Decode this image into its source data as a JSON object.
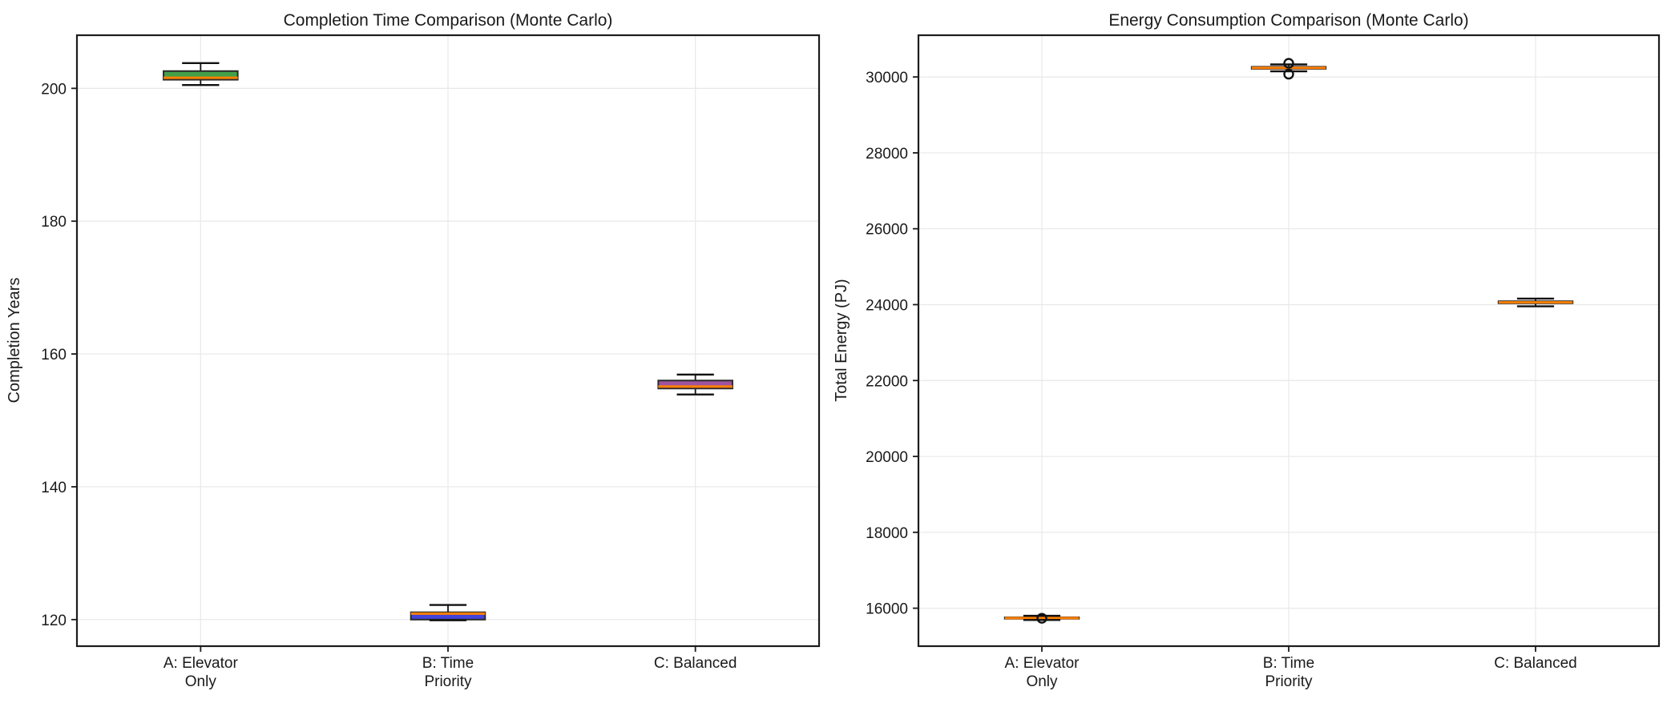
{
  "figure": {
    "background": "#ffffff",
    "text_color": "#1a1a1a",
    "grid_color": "#e8e8e8",
    "spine_color": "#1c1c1c",
    "whisker_color": "#111111",
    "box_edge_color": "#2b2b2b",
    "median_color": "#ff8000"
  },
  "chart_data": [
    {
      "type": "box",
      "title": "Completion Time Comparison (Monte Carlo)",
      "ylabel": "Completion Years",
      "xlabel": "",
      "grid": true,
      "categories": [
        "A: Elevator\nOnly",
        "B: Time\nPriority",
        "C: Balanced"
      ],
      "ylim": [
        116,
        208
      ],
      "yticks": [
        120,
        140,
        160,
        180,
        200
      ],
      "series": [
        {
          "category": "A: Elevator Only",
          "fill": "#43a047",
          "median_color": "#ff8000",
          "whisker_low": 200.5,
          "q1": 201.3,
          "median": 201.6,
          "q3": 202.6,
          "whisker_high": 203.8,
          "outliers": []
        },
        {
          "category": "B: Time Priority",
          "fill": "#4343db",
          "median_color": "#ff8000",
          "whisker_low": 119.9,
          "q1": 120.0,
          "median": 120.9,
          "q3": 121.1,
          "whisker_high": 122.2,
          "outliers": []
        },
        {
          "category": "C: Balanced",
          "fill": "#a0549f",
          "median_color": "#ff8000",
          "whisker_low": 153.9,
          "q1": 154.8,
          "median": 155.1,
          "q3": 156.0,
          "whisker_high": 156.9,
          "outliers": []
        }
      ]
    },
    {
      "type": "box",
      "title": "Energy Consumption Comparison (Monte Carlo)",
      "ylabel": "Total Energy (PJ)",
      "xlabel": "",
      "grid": true,
      "categories": [
        "A: Elevator\nOnly",
        "B: Time\nPriority",
        "C: Balanced"
      ],
      "ylim": [
        15000,
        31100
      ],
      "yticks": [
        16000,
        18000,
        20000,
        22000,
        24000,
        26000,
        28000,
        30000
      ],
      "series": [
        {
          "category": "A: Elevator Only",
          "fill": "#43a047",
          "median_color": "#ff8000",
          "whisker_low": 15690,
          "q1": 15722,
          "median": 15740,
          "q3": 15760,
          "whisker_high": 15800,
          "outliers": [
            15735
          ]
        },
        {
          "category": "B: Time Priority",
          "fill": "#4343db",
          "median_color": "#ff8000",
          "whisker_low": 30150,
          "q1": 30215,
          "median": 30240,
          "q3": 30268,
          "whisker_high": 30330,
          "outliers": [
            30360,
            30075
          ]
        },
        {
          "category": "C: Balanced",
          "fill": "#a0549f",
          "median_color": "#ff8000",
          "whisker_low": 23955,
          "q1": 24035,
          "median": 24060,
          "q3": 24090,
          "whisker_high": 24160,
          "outliers": []
        }
      ]
    }
  ]
}
